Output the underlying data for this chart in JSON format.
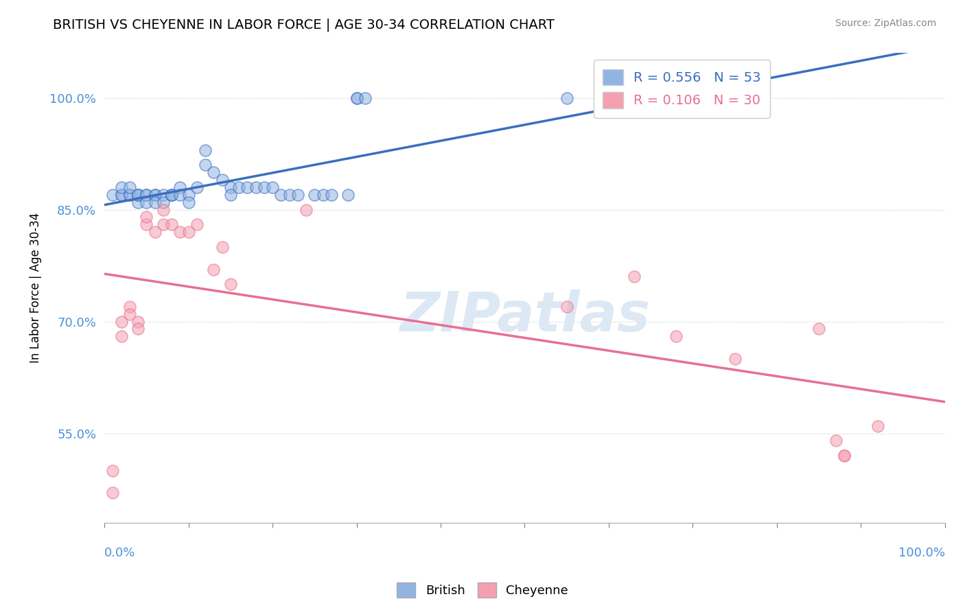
{
  "title": "BRITISH VS CHEYENNE IN LABOR FORCE | AGE 30-34 CORRELATION CHART",
  "source": "Source: ZipAtlas.com",
  "ylabel": "In Labor Force | Age 30-34",
  "yticks": [
    0.55,
    0.7,
    0.85,
    1.0
  ],
  "ytick_labels": [
    "55.0%",
    "70.0%",
    "85.0%",
    "100.0%"
  ],
  "watermark": "ZIPatlas",
  "british_color": "#92b4e3",
  "cheyenne_color": "#f4a0b0",
  "british_line_color": "#3a6ec0",
  "cheyenne_line_color": "#e87090",
  "british_x": [
    0.01,
    0.02,
    0.02,
    0.02,
    0.03,
    0.03,
    0.03,
    0.04,
    0.04,
    0.04,
    0.04,
    0.05,
    0.05,
    0.05,
    0.06,
    0.06,
    0.06,
    0.07,
    0.07,
    0.08,
    0.08,
    0.08,
    0.09,
    0.09,
    0.1,
    0.1,
    0.11,
    0.12,
    0.12,
    0.13,
    0.14,
    0.15,
    0.15,
    0.16,
    0.17,
    0.18,
    0.19,
    0.2,
    0.21,
    0.22,
    0.23,
    0.25,
    0.26,
    0.27,
    0.29,
    0.3,
    0.3,
    0.31,
    0.55,
    0.6,
    0.65,
    0.7,
    0.75
  ],
  "british_y": [
    0.87,
    0.87,
    0.87,
    0.88,
    0.87,
    0.87,
    0.88,
    0.87,
    0.86,
    0.87,
    0.87,
    0.87,
    0.87,
    0.86,
    0.87,
    0.87,
    0.86,
    0.87,
    0.86,
    0.87,
    0.87,
    0.87,
    0.88,
    0.87,
    0.87,
    0.86,
    0.88,
    0.93,
    0.91,
    0.9,
    0.89,
    0.88,
    0.87,
    0.88,
    0.88,
    0.88,
    0.88,
    0.88,
    0.87,
    0.87,
    0.87,
    0.87,
    0.87,
    0.87,
    0.87,
    1.0,
    1.0,
    1.0,
    1.0,
    1.0,
    1.0,
    1.0,
    1.0
  ],
  "cheyenne_x": [
    0.01,
    0.01,
    0.02,
    0.02,
    0.03,
    0.03,
    0.04,
    0.04,
    0.05,
    0.05,
    0.06,
    0.07,
    0.07,
    0.08,
    0.09,
    0.1,
    0.11,
    0.13,
    0.14,
    0.15,
    0.24,
    0.55,
    0.63,
    0.68,
    0.75,
    0.85,
    0.87,
    0.88,
    0.88,
    0.92
  ],
  "cheyenne_y": [
    0.47,
    0.5,
    0.7,
    0.68,
    0.72,
    0.71,
    0.7,
    0.69,
    0.83,
    0.84,
    0.82,
    0.83,
    0.85,
    0.83,
    0.82,
    0.82,
    0.83,
    0.77,
    0.8,
    0.75,
    0.85,
    0.72,
    0.76,
    0.68,
    0.65,
    0.69,
    0.54,
    0.52,
    0.52,
    0.56
  ],
  "xmin": 0.0,
  "xmax": 1.0,
  "ymin": 0.43,
  "ymax": 1.06
}
